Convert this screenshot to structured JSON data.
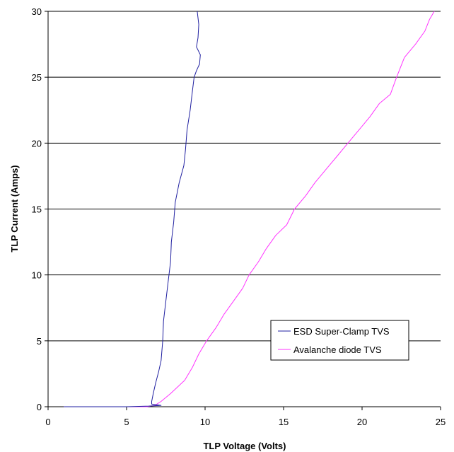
{
  "chart_data": {
    "type": "line",
    "xlabel": "TLP Voltage (Volts)",
    "ylabel": "TLP Current (Amps)",
    "xlim": [
      0,
      25
    ],
    "ylim": [
      0,
      30
    ],
    "xticks": [
      "0",
      "5",
      "10",
      "15",
      "20",
      "25"
    ],
    "yticks": [
      "0",
      "5",
      "10",
      "15",
      "20",
      "25",
      "30"
    ],
    "grid": "horizontal",
    "legend_position": "right",
    "series": [
      {
        "name": "ESD Super-Clamp TVS",
        "color": "#1f1fa0",
        "points": [
          [
            1.0,
            0.0
          ],
          [
            5.0,
            0.0
          ],
          [
            6.4,
            0.05
          ],
          [
            7.2,
            0.1
          ],
          [
            6.6,
            0.2
          ],
          [
            6.6,
            0.4
          ],
          [
            6.7,
            1.0
          ],
          [
            6.85,
            1.8
          ],
          [
            7.05,
            2.7
          ],
          [
            7.2,
            3.5
          ],
          [
            7.3,
            5.0
          ],
          [
            7.35,
            6.5
          ],
          [
            7.5,
            8.0
          ],
          [
            7.65,
            9.5
          ],
          [
            7.8,
            11.0
          ],
          [
            7.85,
            12.5
          ],
          [
            8.0,
            14.0
          ],
          [
            8.1,
            15.5
          ],
          [
            8.35,
            17.0
          ],
          [
            8.65,
            18.3
          ],
          [
            8.75,
            19.5
          ],
          [
            8.85,
            21.0
          ],
          [
            9.05,
            22.5
          ],
          [
            9.2,
            24.0
          ],
          [
            9.3,
            25.0
          ],
          [
            9.45,
            25.5
          ],
          [
            9.65,
            26.0
          ],
          [
            9.7,
            26.7
          ],
          [
            9.45,
            27.3
          ],
          [
            9.55,
            28.0
          ],
          [
            9.6,
            29.0
          ],
          [
            9.5,
            30.0
          ]
        ]
      },
      {
        "name": "Avalanche diode TVS",
        "color": "#ff33ff",
        "points": [
          [
            1.0,
            0.0
          ],
          [
            5.0,
            0.0
          ],
          [
            6.3,
            0.0
          ],
          [
            6.8,
            0.1
          ],
          [
            7.2,
            0.4
          ],
          [
            7.8,
            1.0
          ],
          [
            8.7,
            2.0
          ],
          [
            9.2,
            3.0
          ],
          [
            9.6,
            4.0
          ],
          [
            10.1,
            5.0
          ],
          [
            10.7,
            6.0
          ],
          [
            11.2,
            7.0
          ],
          [
            11.8,
            8.0
          ],
          [
            12.4,
            9.0
          ],
          [
            12.8,
            10.0
          ],
          [
            13.4,
            11.0
          ],
          [
            13.9,
            12.0
          ],
          [
            14.5,
            13.0
          ],
          [
            15.2,
            13.8
          ],
          [
            15.7,
            15.0
          ],
          [
            16.4,
            16.0
          ],
          [
            17.0,
            17.0
          ],
          [
            17.7,
            18.0
          ],
          [
            18.4,
            19.0
          ],
          [
            19.1,
            20.0
          ],
          [
            19.8,
            21.0
          ],
          [
            20.5,
            22.0
          ],
          [
            21.1,
            23.0
          ],
          [
            21.8,
            23.7
          ],
          [
            22.2,
            25.0
          ],
          [
            22.7,
            26.5
          ],
          [
            23.4,
            27.5
          ],
          [
            24.0,
            28.5
          ],
          [
            24.3,
            29.4
          ],
          [
            24.6,
            30.0
          ]
        ]
      }
    ]
  }
}
